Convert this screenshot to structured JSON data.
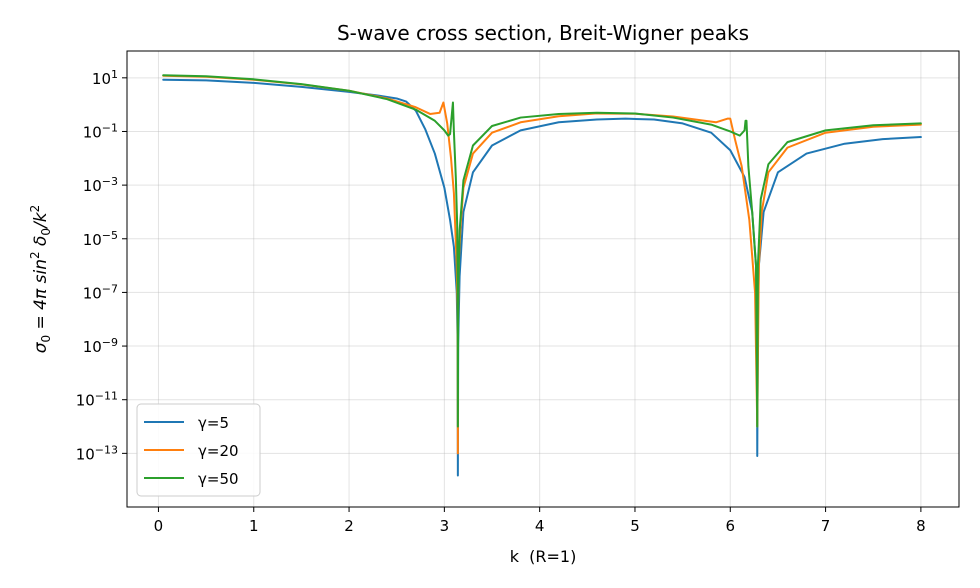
{
  "chart_data": {
    "type": "line",
    "title": "S-wave cross section, Breit-Wigner peaks",
    "xlabel": "k  (R=1)",
    "ylabel": {
      "parts": [
        "σ",
        "0",
        " = 4π sin",
        "2",
        " δ",
        "0",
        "/k",
        "2"
      ]
    },
    "x_scale": "linear",
    "y_scale": "log",
    "xlim": [
      -0.33,
      8.4
    ],
    "ylim": [
      1e-15,
      100
    ],
    "x_ticks": [
      0,
      1,
      2,
      3,
      4,
      5,
      6,
      7,
      8
    ],
    "x_tick_labels": [
      "0",
      "1",
      "2",
      "3",
      "4",
      "5",
      "6",
      "7",
      "8"
    ],
    "y_ticks": [
      {
        "value": 10,
        "base": "10",
        "exp": "1"
      },
      {
        "value": 0.1,
        "base": "10",
        "exp": "−1"
      },
      {
        "value": 0.001,
        "base": "10",
        "exp": "−3"
      },
      {
        "value": 1e-05,
        "base": "10",
        "exp": "−5"
      },
      {
        "value": 1e-07,
        "base": "10",
        "exp": "−7"
      },
      {
        "value": 1e-09,
        "base": "10",
        "exp": "−9"
      },
      {
        "value": 1e-11,
        "base": "10",
        "exp": "−11"
      },
      {
        "value": 1e-13,
        "base": "10",
        "exp": "−13"
      }
    ],
    "grid": true,
    "legend_position": "bottom-left",
    "series": [
      {
        "name": "γ=5",
        "color": "#1f77b4",
        "x": [
          0.05,
          0.5,
          1.0,
          1.5,
          2.0,
          2.3,
          2.5,
          2.6,
          2.7,
          2.8,
          2.9,
          3.0,
          3.06,
          3.1,
          3.13,
          3.135,
          3.14,
          3.1416,
          3.145,
          3.15,
          3.16,
          3.2,
          3.3,
          3.5,
          3.8,
          4.2,
          4.6,
          4.9,
          5.2,
          5.5,
          5.8,
          6.0,
          6.15,
          6.23,
          6.27,
          6.28,
          6.2832,
          6.29,
          6.3,
          6.35,
          6.5,
          6.8,
          7.2,
          7.6,
          8.0
        ],
        "y": [
          8.5,
          8.0,
          6.5,
          4.6,
          3.0,
          2.2,
          1.7,
          1.3,
          0.6,
          0.12,
          0.015,
          0.0008,
          5e-05,
          5e-06,
          1e-07,
          1e-08,
          1e-09,
          1.5e-14,
          1e-09,
          1e-08,
          4e-07,
          0.0001,
          0.003,
          0.03,
          0.11,
          0.22,
          0.28,
          0.3,
          0.28,
          0.2,
          0.09,
          0.02,
          0.002,
          0.0001,
          1e-06,
          1e-08,
          8e-14,
          1e-08,
          1e-06,
          0.0001,
          0.003,
          0.015,
          0.035,
          0.052,
          0.062
        ]
      },
      {
        "name": "γ=20",
        "color": "#ff7f0e",
        "x": [
          0.05,
          0.5,
          1.0,
          1.5,
          2.0,
          2.4,
          2.7,
          2.85,
          2.95,
          2.99,
          3.03,
          3.07,
          3.1,
          3.13,
          3.14,
          3.1416,
          3.143,
          3.15,
          3.17,
          3.2,
          3.3,
          3.5,
          3.8,
          4.2,
          4.6,
          5.0,
          5.4,
          5.7,
          5.85,
          5.97,
          6.0,
          6.05,
          6.12,
          6.2,
          6.26,
          6.2832,
          6.3,
          6.33,
          6.4,
          6.6,
          7.0,
          7.5,
          8.0
        ],
        "y": [
          12.0,
          11.0,
          8.5,
          5.7,
          3.3,
          1.7,
          0.8,
          0.45,
          0.5,
          1.2,
          0.2,
          0.01,
          0.0005,
          1e-06,
          1e-08,
          1e-13,
          1e-08,
          1e-06,
          3e-05,
          0.0008,
          0.015,
          0.09,
          0.22,
          0.37,
          0.47,
          0.46,
          0.36,
          0.26,
          0.22,
          0.3,
          0.3,
          0.05,
          0.005,
          5e-05,
          1e-07,
          1e-12,
          1e-06,
          0.0001,
          0.003,
          0.025,
          0.09,
          0.15,
          0.18
        ]
      },
      {
        "name": "γ=50",
        "color": "#2ca02c",
        "x": [
          0.05,
          0.5,
          1.0,
          1.5,
          2.0,
          2.4,
          2.7,
          2.9,
          3.0,
          3.04,
          3.06,
          3.08,
          3.09,
          3.1,
          3.12,
          3.135,
          3.14,
          3.1416,
          3.145,
          3.16,
          3.2,
          3.3,
          3.5,
          3.8,
          4.2,
          4.6,
          5.0,
          5.4,
          5.8,
          6.0,
          6.1,
          6.15,
          6.16,
          6.17,
          6.19,
          6.23,
          6.27,
          6.2832,
          6.29,
          6.32,
          6.4,
          6.6,
          7.0,
          7.5,
          8.0
        ],
        "y": [
          12.5,
          11.5,
          8.8,
          5.8,
          3.3,
          1.6,
          0.65,
          0.25,
          0.11,
          0.07,
          0.08,
          0.5,
          1.2,
          0.1,
          0.002,
          3e-05,
          1e-07,
          1e-12,
          1e-07,
          2e-05,
          0.0015,
          0.03,
          0.16,
          0.33,
          0.45,
          0.5,
          0.47,
          0.33,
          0.18,
          0.1,
          0.07,
          0.11,
          0.25,
          0.25,
          0.005,
          0.0001,
          1e-06,
          1e-12,
          1e-06,
          0.0003,
          0.006,
          0.04,
          0.11,
          0.17,
          0.2
        ]
      }
    ]
  }
}
